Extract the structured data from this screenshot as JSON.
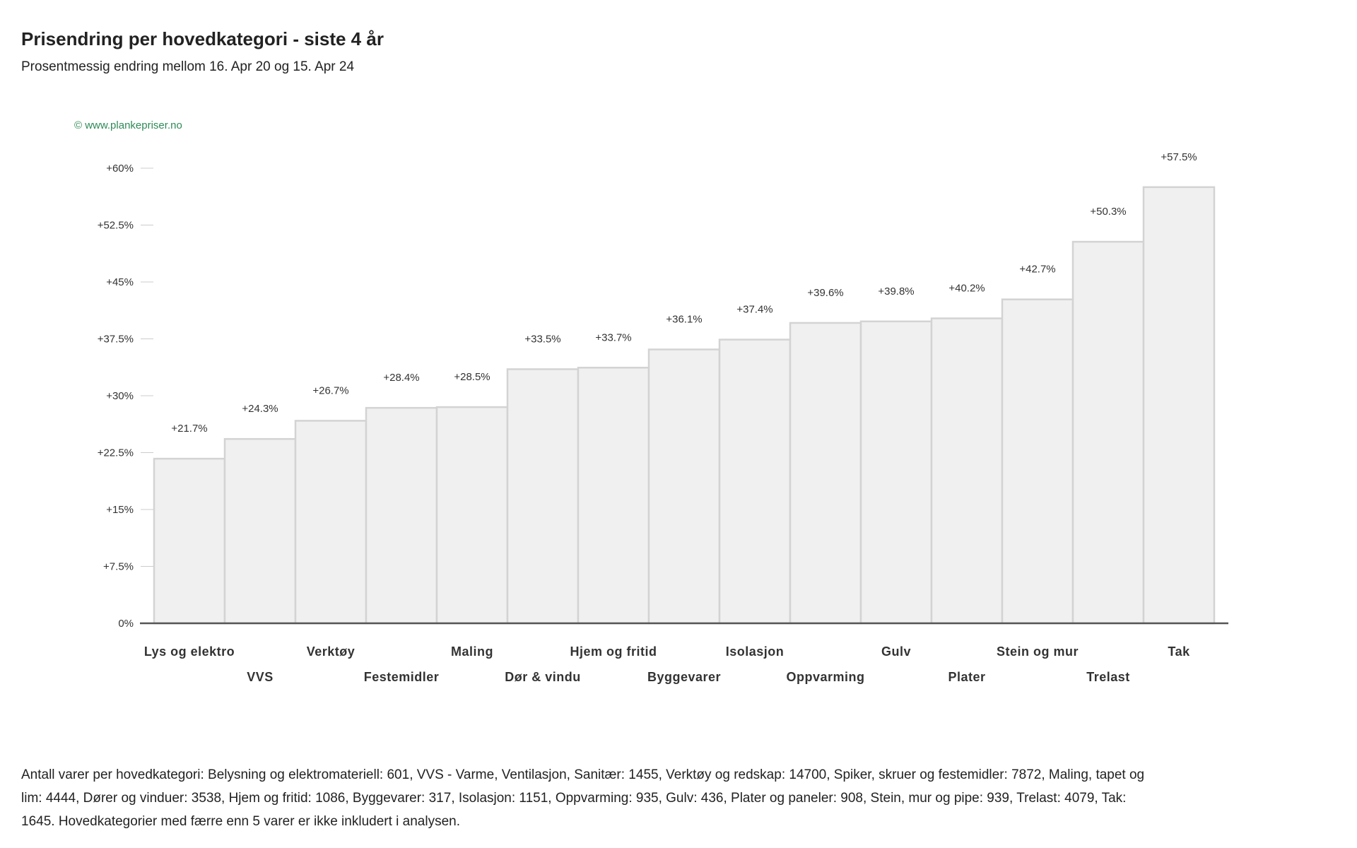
{
  "header": {
    "title": "Prisendring per hovedkategori - siste 4 år",
    "subtitle": "Prosentmessig endring mellom 16. Apr 20 og 15. Apr 24"
  },
  "watermark": "© www.plankepriser.no",
  "chart_data": {
    "type": "bar",
    "title": "Prisendring per hovedkategori - siste 4 år",
    "subtitle": "Prosentmessig endring mellom 16. Apr 20 og 15. Apr 24",
    "categories": [
      "Lys og elektro",
      "VVS",
      "Verktøy",
      "Festemidler",
      "Maling",
      "Dør & vindu",
      "Hjem og fritid",
      "Byggevarer",
      "Isolasjon",
      "Oppvarming",
      "Gulv",
      "Plater",
      "Stein og mur",
      "Trelast",
      "Tak"
    ],
    "values": [
      21.7,
      24.3,
      26.7,
      28.4,
      28.5,
      33.5,
      33.7,
      36.1,
      37.4,
      39.6,
      39.8,
      40.2,
      42.7,
      50.3,
      57.5
    ],
    "data_labels": [
      "+21.7%",
      "+24.3%",
      "+26.7%",
      "+28.4%",
      "+28.5%",
      "+33.5%",
      "+33.7%",
      "+36.1%",
      "+37.4%",
      "+39.6%",
      "+39.8%",
      "+40.2%",
      "+42.7%",
      "+50.3%",
      "+57.5%"
    ],
    "ylim": [
      0,
      60
    ],
    "yticks": [
      0,
      7.5,
      15,
      22.5,
      30,
      37.5,
      45,
      52.5,
      60
    ],
    "ytick_labels": [
      "0%",
      "+7.5%",
      "+15%",
      "+22.5%",
      "+30%",
      "+37.5%",
      "+45%",
      "+52.5%",
      "+60%"
    ],
    "xlabel": "",
    "ylabel": "",
    "grid": false,
    "legend": "none",
    "colors": {
      "bar_fill": "#f0f0f0",
      "bar_stroke": "#d3d3d3",
      "axis": "#555555",
      "watermark": "#2e8b57"
    }
  },
  "footnote": "Antall varer per hovedkategori: Belysning og elektromateriell: 601, VVS - Varme, Ventilasjon, Sanitær: 1455, Verktøy og redskap: 14700, Spiker, skruer og festemidler: 7872, Maling, tapet og lim: 4444, Dører og vinduer: 3538, Hjem og fritid: 1086, Byggevarer: 317, Isolasjon: 1151, Oppvarming: 935, Gulv: 436, Plater og paneler: 908, Stein, mur og pipe: 939, Trelast: 4079, Tak: 1645. Hovedkategorier med færre enn 5 varer er ikke inkludert i analysen."
}
